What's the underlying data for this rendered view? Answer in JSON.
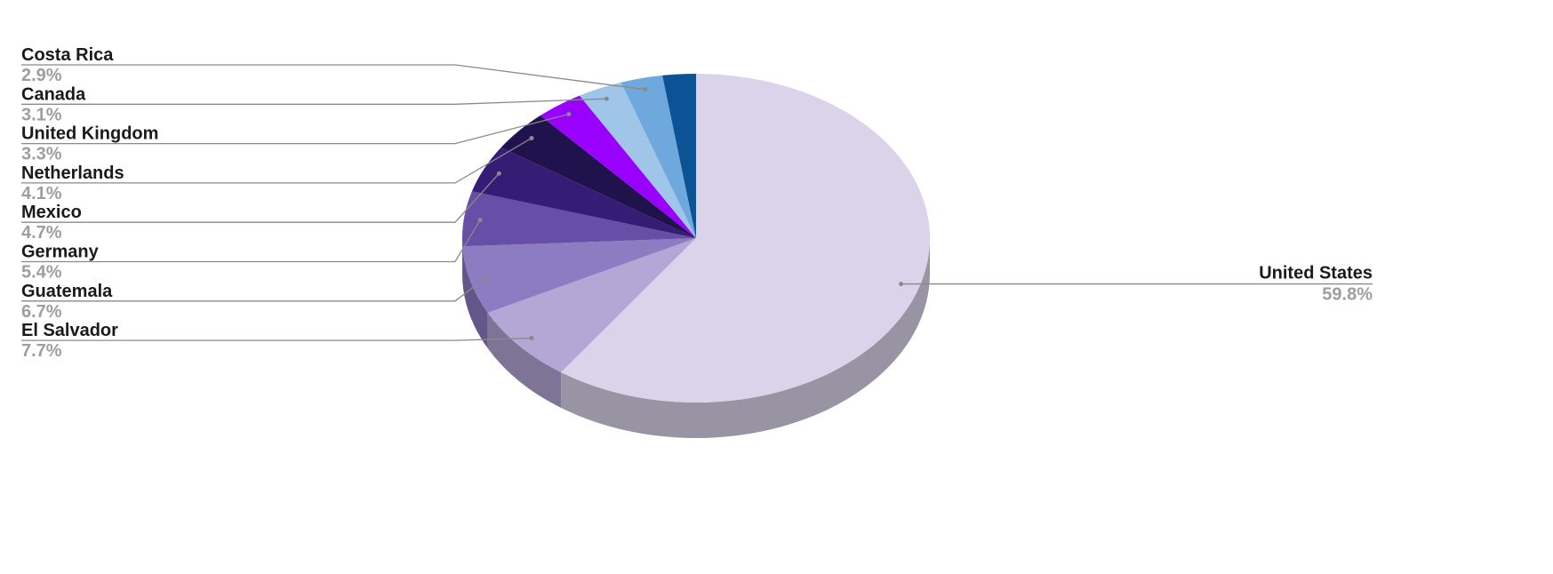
{
  "chart_data": {
    "type": "pie",
    "style": "3d",
    "title": "",
    "start_angle": "12 o'clock, clockwise",
    "slices": [
      {
        "name": "United States",
        "value": 59.8,
        "label": "59.8%",
        "color": "#dbd3ea"
      },
      {
        "name": "El Salvador",
        "value": 7.7,
        "label": "7.7%",
        "color": "#b4a7d6"
      },
      {
        "name": "Guatemala",
        "value": 6.7,
        "label": "6.7%",
        "color": "#8e7cc3"
      },
      {
        "name": "Germany",
        "value": 5.4,
        "label": "5.4%",
        "color": "#674ea7"
      },
      {
        "name": "Mexico",
        "value": 4.7,
        "label": "4.7%",
        "color": "#351c75"
      },
      {
        "name": "Netherlands",
        "value": 4.1,
        "label": "4.1%",
        "color": "#20124d"
      },
      {
        "name": "United Kingdom",
        "value": 3.3,
        "label": "3.3%",
        "color": "#9900ff"
      },
      {
        "name": "Canada",
        "value": 3.1,
        "label": "3.1%",
        "color": "#9fc5e8"
      },
      {
        "name": "Costa Rica",
        "value": 2.9,
        "label": "2.9%",
        "color": "#6fa8dc"
      },
      {
        "name": "",
        "value": 2.3,
        "label": "",
        "color": "#0b5394"
      }
    ],
    "legend": "none; leader-line labels (left side and right side)"
  }
}
